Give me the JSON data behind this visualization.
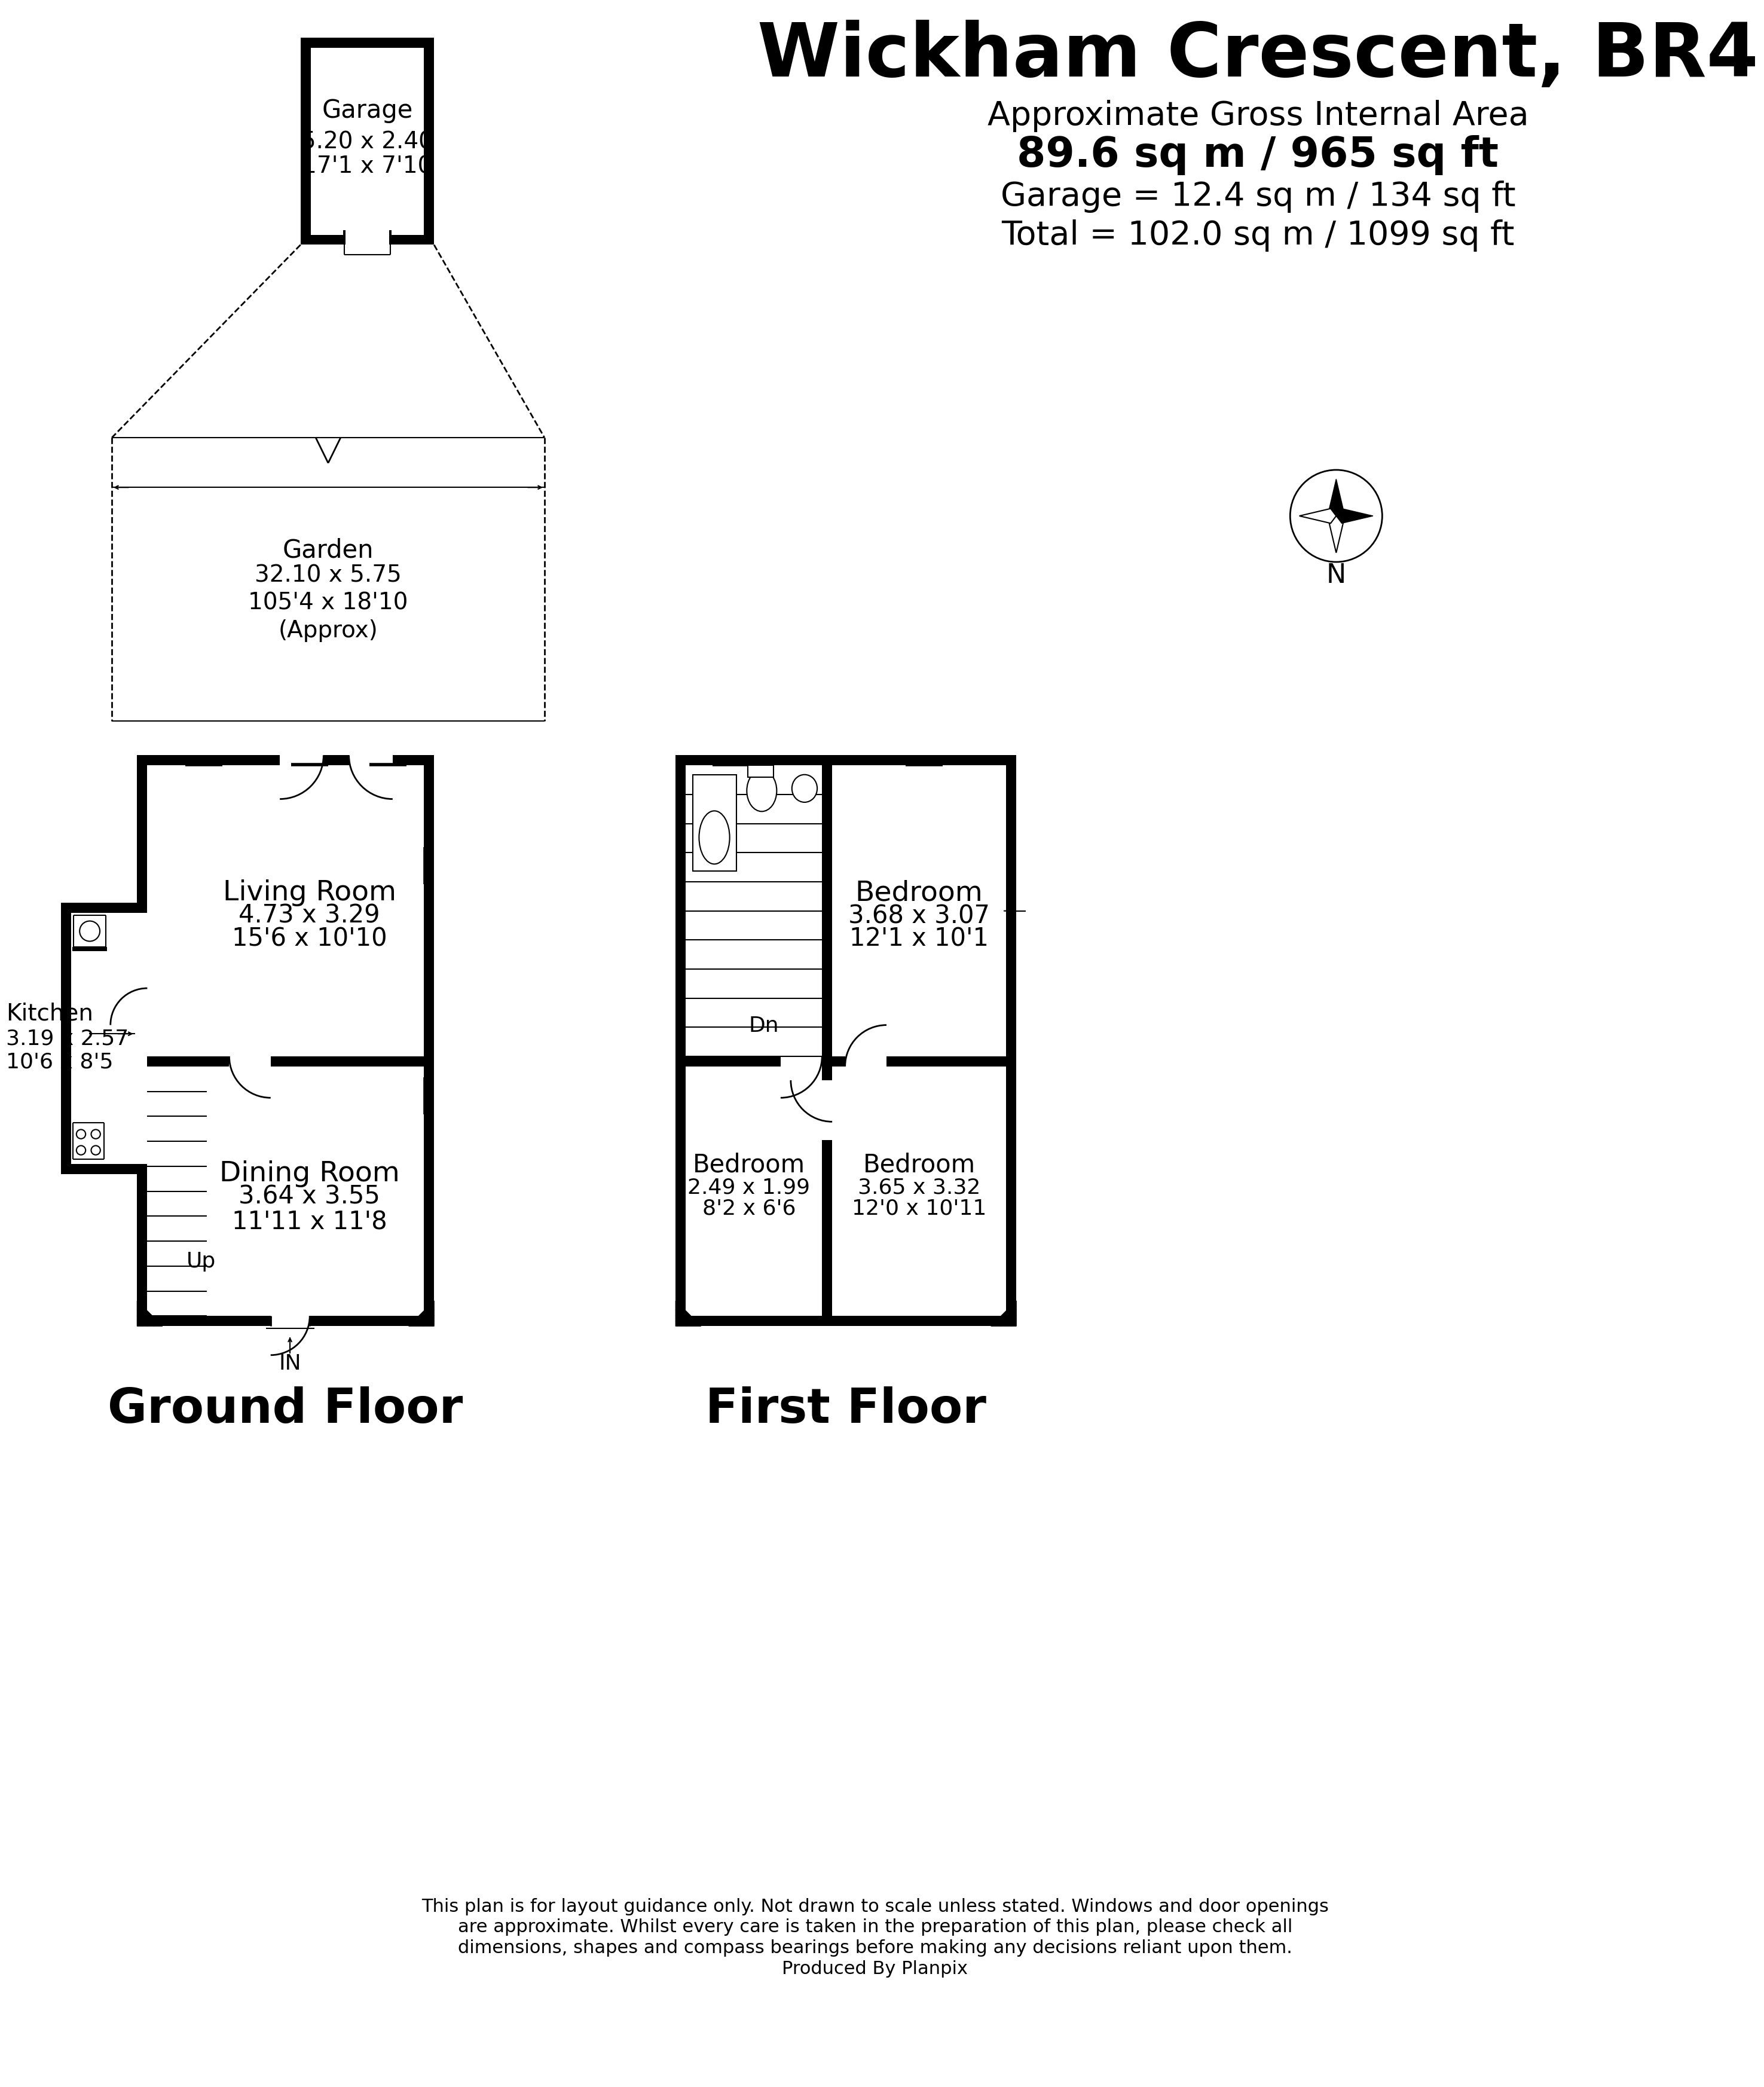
{
  "title": "Wickham Crescent, BR4",
  "subtitle_line1": "Approximate Gross Internal Area",
  "subtitle_line2": "89.6 sq m / 965 sq ft",
  "subtitle_line3": "Garage = 12.4 sq m / 134 sq ft",
  "subtitle_line4": "Total = 102.0 sq m / 1099 sq ft",
  "ground_floor_label": "Ground Floor",
  "first_floor_label": "First Floor",
  "footer_line1": "This plan is for layout guidance only. Not drawn to scale unless stated. Windows and door openings",
  "footer_line2": "are approximate. Whilst every care is taken in the preparation of this plan, please check all",
  "footer_line3": "dimensions, shapes and compass bearings before making any decisions reliant upon them.",
  "footer_line4": "Produced By Planpix",
  "rooms": {
    "garage": {
      "name": "Garage",
      "dim1": "5.20 x 2.40",
      "dim2": "17'1 x 7'10"
    },
    "garden": {
      "name": "Garden",
      "dim1": "32.10 x 5.75",
      "dim2": "105'4 x 18'10",
      "dim3": "(Approx)"
    },
    "kitchen": {
      "name": "Kitchen",
      "dim1": "3.19 x 2.57",
      "dim2": "10'6 x 8'5"
    },
    "living_room": {
      "name": "Living Room",
      "dim1": "4.73 x 3.29",
      "dim2": "15'6 x 10'10"
    },
    "dining_room": {
      "name": "Dining Room",
      "dim1": "3.64 x 3.55",
      "dim2": "11'11 x 11'8"
    },
    "bedroom1": {
      "name": "Bedroom",
      "dim1": "3.68 x 3.07",
      "dim2": "12'1 x 10'1"
    },
    "bedroom2": {
      "name": "Bedroom",
      "dim1": "2.49 x 1.99",
      "dim2": "8'2 x 6'6"
    },
    "bedroom3": {
      "name": "Bedroom",
      "dim1": "3.65 x 3.32",
      "dim2": "12'0 x 10'11"
    }
  },
  "wall_color": "#000000",
  "bg_color": "#ffffff"
}
